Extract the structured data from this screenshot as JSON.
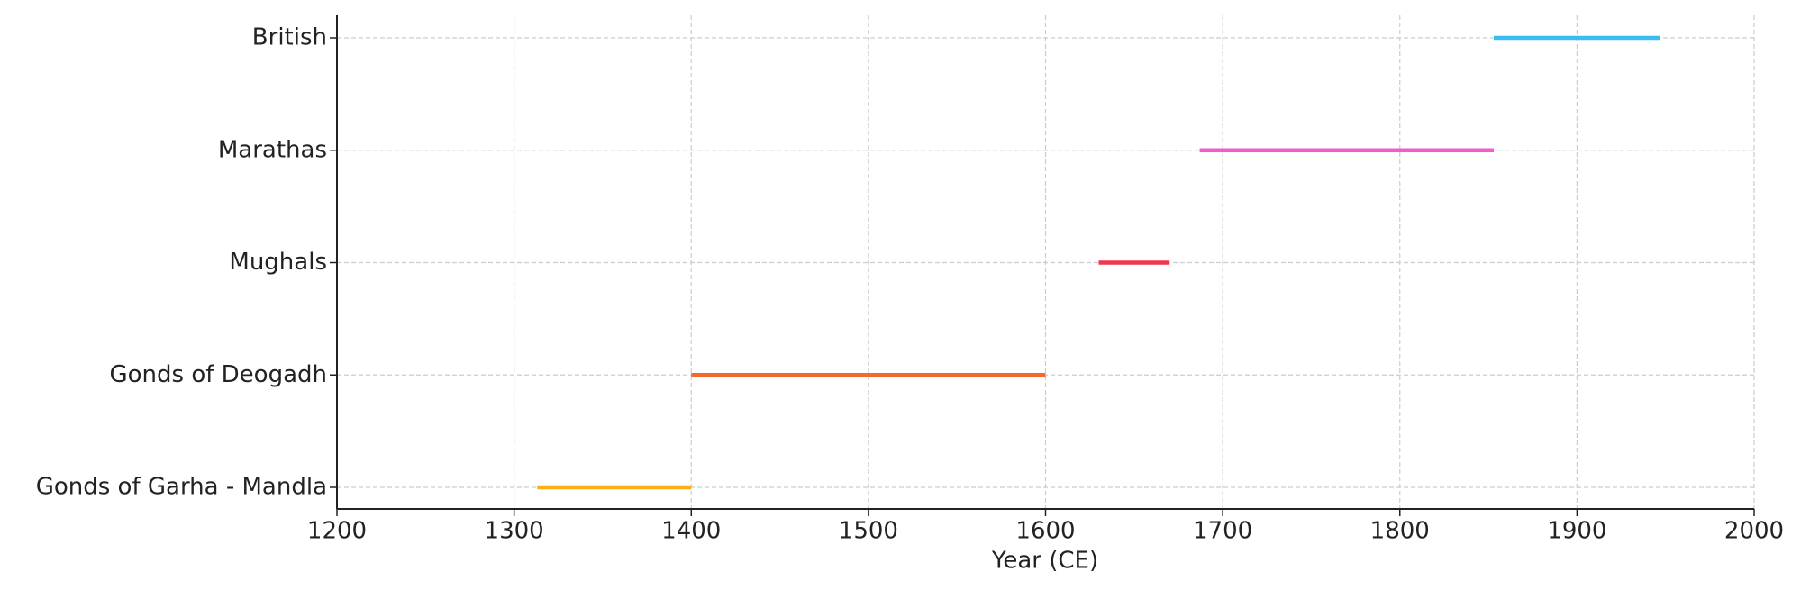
{
  "chart_data": {
    "type": "timeline",
    "xlabel": "Year (CE)",
    "categories": [
      "Gonds of Garha - Mandla",
      "Gonds of Deogadh",
      "Mughals",
      "Marathas",
      "British"
    ],
    "start": [
      1313,
      1400,
      1630,
      1687,
      1853
    ],
    "end": [
      1400,
      1600,
      1670,
      1853,
      1947
    ],
    "colors": [
      "#fbae17",
      "#f26b2e",
      "#f0374f",
      "#f55ccb",
      "#3bbcf0"
    ],
    "xlim": [
      1200,
      2000
    ],
    "xticks": [
      1200,
      1300,
      1400,
      1500,
      1600,
      1700,
      1800,
      1900,
      2000
    ],
    "grid": true
  }
}
